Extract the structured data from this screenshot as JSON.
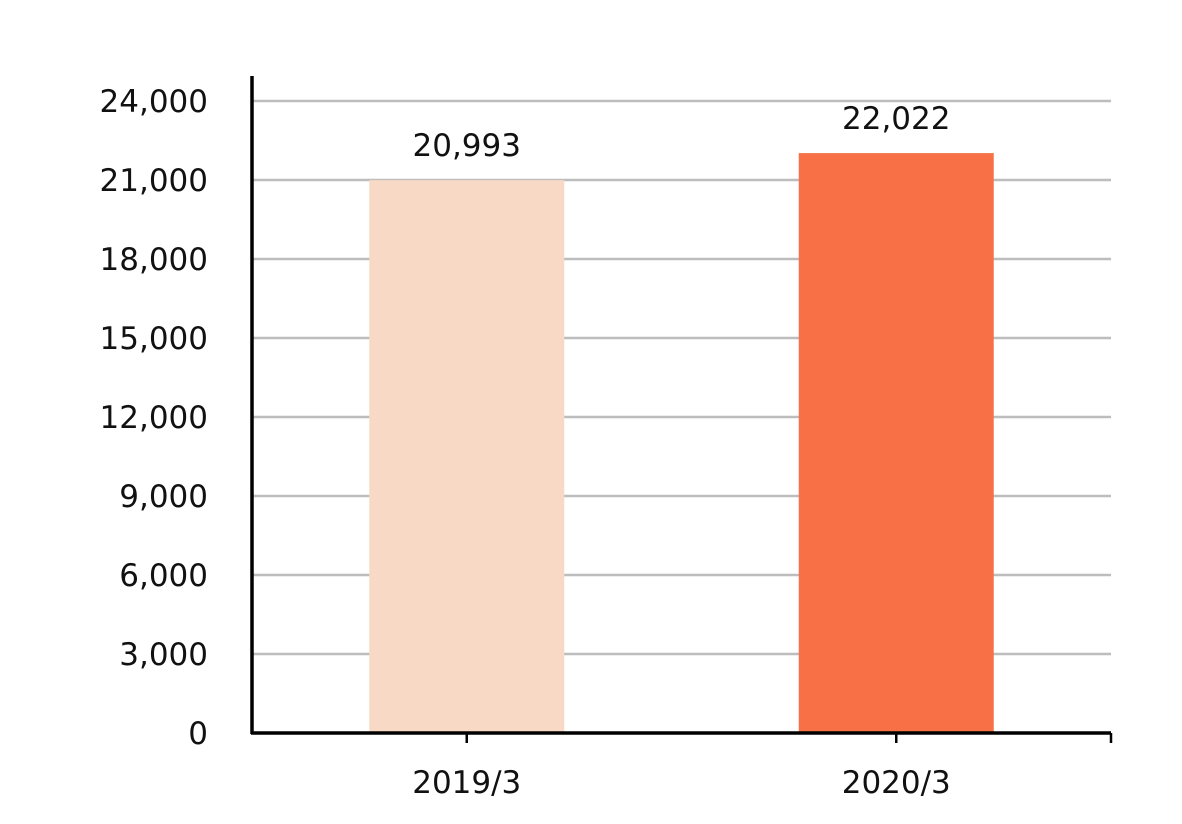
{
  "chart_data": {
    "type": "bar",
    "title": "",
    "xlabel": "",
    "ylabel": "",
    "categories": [
      "2019/3",
      "2020/3"
    ],
    "values": [
      20993,
      22022
    ],
    "value_labels": [
      "20,993",
      "22,022"
    ],
    "bar_colors": [
      "#f8d9c6",
      "#f87146"
    ],
    "ylim": [
      0,
      24000
    ],
    "y_ticks": [
      0,
      3000,
      6000,
      9000,
      12000,
      15000,
      18000,
      21000,
      24000
    ],
    "y_tick_labels": [
      "0",
      "3,000",
      "6,000",
      "9,000",
      "12,000",
      "15,000",
      "18,000",
      "21,000",
      "24,000"
    ],
    "grid": true,
    "legend": "none"
  }
}
